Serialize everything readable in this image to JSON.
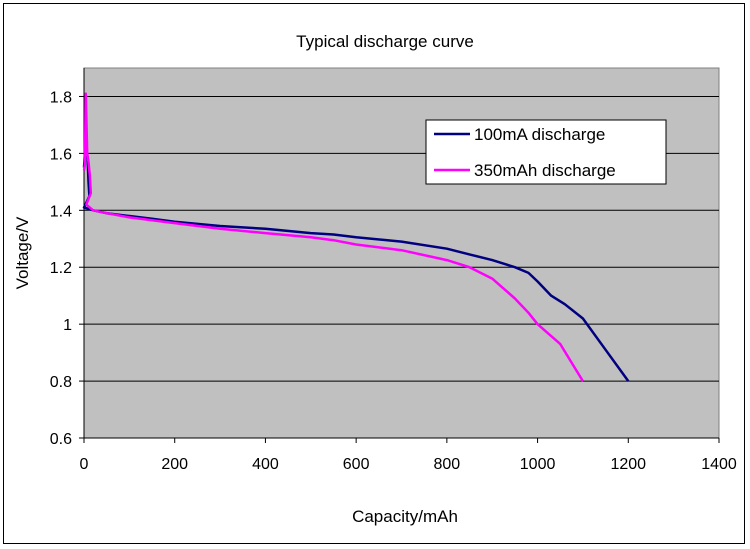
{
  "chart_data": {
    "type": "line",
    "title": "Typical discharge curve",
    "xlabel": "Capacity/mAh",
    "ylabel": "Voltage/V",
    "xlim": [
      0,
      1400
    ],
    "ylim": [
      0.6,
      1.9
    ],
    "x_ticks": [
      0,
      200,
      400,
      600,
      800,
      1000,
      1200,
      1400
    ],
    "y_ticks": [
      0.6,
      0.8,
      1,
      1.2,
      1.4,
      1.6,
      1.8
    ],
    "y_tick_labels": [
      "0.6",
      "0.8",
      "1",
      "1.2",
      "1.4",
      "1.6",
      "1.8"
    ],
    "grid": "horizontal",
    "plot_background": "#c0c0c0",
    "legend_position": "top-right",
    "series": [
      {
        "name": "100mA discharge",
        "color": "#000080",
        "points": [
          [
            0,
            1.55
          ],
          [
            2,
            1.6
          ],
          [
            4,
            1.67
          ],
          [
            6,
            1.59
          ],
          [
            8,
            1.58
          ],
          [
            10,
            1.5
          ],
          [
            12,
            1.45
          ],
          [
            0,
            1.41
          ],
          [
            20,
            1.4
          ],
          [
            50,
            1.39
          ],
          [
            100,
            1.38
          ],
          [
            150,
            1.37
          ],
          [
            200,
            1.36
          ],
          [
            300,
            1.345
          ],
          [
            400,
            1.335
          ],
          [
            500,
            1.32
          ],
          [
            550,
            1.315
          ],
          [
            600,
            1.305
          ],
          [
            700,
            1.29
          ],
          [
            800,
            1.265
          ],
          [
            850,
            1.245
          ],
          [
            900,
            1.225
          ],
          [
            950,
            1.2
          ],
          [
            980,
            1.18
          ],
          [
            1000,
            1.15
          ],
          [
            1030,
            1.1
          ],
          [
            1060,
            1.07
          ],
          [
            1100,
            1.02
          ],
          [
            1150,
            0.91
          ],
          [
            1200,
            0.8
          ]
        ]
      },
      {
        "name": "350mAh discharge",
        "color": "#ff00ff",
        "points": [
          [
            0,
            1.54
          ],
          [
            2,
            1.56
          ],
          [
            4,
            1.81
          ],
          [
            7,
            1.6
          ],
          [
            10,
            1.57
          ],
          [
            13,
            1.52
          ],
          [
            15,
            1.46
          ],
          [
            5,
            1.42
          ],
          [
            20,
            1.4
          ],
          [
            50,
            1.39
          ],
          [
            100,
            1.375
          ],
          [
            150,
            1.365
          ],
          [
            200,
            1.355
          ],
          [
            300,
            1.335
          ],
          [
            400,
            1.32
          ],
          [
            500,
            1.305
          ],
          [
            550,
            1.295
          ],
          [
            600,
            1.28
          ],
          [
            700,
            1.26
          ],
          [
            800,
            1.225
          ],
          [
            850,
            1.2
          ],
          [
            900,
            1.16
          ],
          [
            950,
            1.09
          ],
          [
            980,
            1.04
          ],
          [
            1000,
            1.0
          ],
          [
            1050,
            0.93
          ],
          [
            1100,
            0.8
          ]
        ]
      }
    ]
  }
}
